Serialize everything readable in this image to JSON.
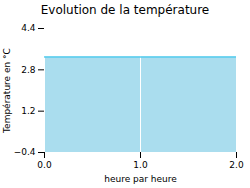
{
  "chart_data": {
    "type": "area",
    "title": "Evolution de la température",
    "x_label": "heure par heure",
    "y_label": "Température en °C",
    "x": [
      0,
      2
    ],
    "values": [
      3.3,
      3.3
    ],
    "color": "#55ccee",
    "fill_color": "#aaddee",
    "xlim": [
      0,
      2
    ],
    "ylim": [
      -0.4,
      4.4
    ],
    "xticks": [
      0,
      1,
      2
    ],
    "yticks": [
      -0.4,
      1.2,
      2.8,
      4.4
    ],
    "grid": "x"
  }
}
